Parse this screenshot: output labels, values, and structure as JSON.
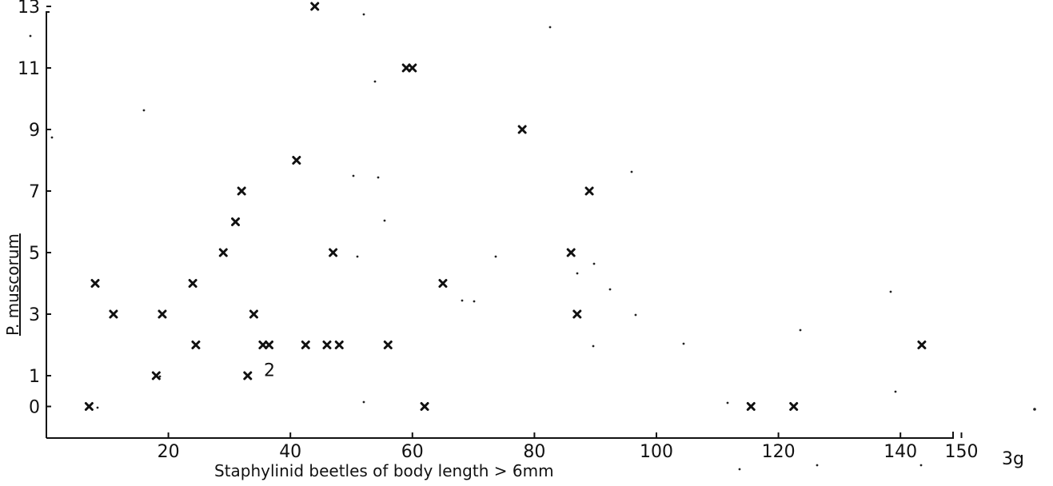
{
  "chart_data": {
    "type": "scatter",
    "title": "",
    "xlabel": "Staphylinid beetles of body length > 6mm",
    "ylabel": "P. muscorum",
    "x_unit_label": "3g",
    "xlim": [
      0,
      150
    ],
    "ylim": [
      -1,
      13
    ],
    "x_ticks": [
      20,
      40,
      60,
      80,
      100,
      120,
      140,
      150
    ],
    "x_tick_labels": [
      "20",
      "40",
      "60",
      "80",
      "100",
      "120",
      "140",
      "150"
    ],
    "y_ticks": [
      0,
      1,
      3,
      5,
      7,
      9,
      11,
      13
    ],
    "y_tick_labels": [
      "0",
      "1",
      "3",
      "5",
      "7",
      "9",
      "11",
      "13"
    ],
    "grid": false,
    "points": [
      {
        "x": 7,
        "y": 0
      },
      {
        "x": 8,
        "y": 4
      },
      {
        "x": 11,
        "y": 3
      },
      {
        "x": 18,
        "y": 1
      },
      {
        "x": 19,
        "y": 3
      },
      {
        "x": 24,
        "y": 4
      },
      {
        "x": 24.5,
        "y": 2
      },
      {
        "x": 29,
        "y": 5
      },
      {
        "x": 31,
        "y": 6
      },
      {
        "x": 32,
        "y": 7
      },
      {
        "x": 33,
        "y": 1
      },
      {
        "x": 34,
        "y": 3
      },
      {
        "x": 35.5,
        "y": 2
      },
      {
        "x": 36.5,
        "y": 2
      },
      {
        "x": 41,
        "y": 8
      },
      {
        "x": 42.5,
        "y": 2
      },
      {
        "x": 44,
        "y": 13
      },
      {
        "x": 46,
        "y": 2
      },
      {
        "x": 47,
        "y": 5
      },
      {
        "x": 48,
        "y": 2
      },
      {
        "x": 56,
        "y": 2
      },
      {
        "x": 59,
        "y": 11
      },
      {
        "x": 60,
        "y": 11
      },
      {
        "x": 62,
        "y": 0
      },
      {
        "x": 65,
        "y": 4
      },
      {
        "x": 78,
        "y": 9
      },
      {
        "x": 86,
        "y": 5
      },
      {
        "x": 87,
        "y": 3
      },
      {
        "x": 89,
        "y": 7
      },
      {
        "x": 115.5,
        "y": 0
      },
      {
        "x": 122.5,
        "y": 0
      },
      {
        "x": 143.5,
        "y": 2
      }
    ],
    "annotations": [
      {
        "text": "2",
        "x": 35,
        "y": 1.3
      }
    ]
  }
}
